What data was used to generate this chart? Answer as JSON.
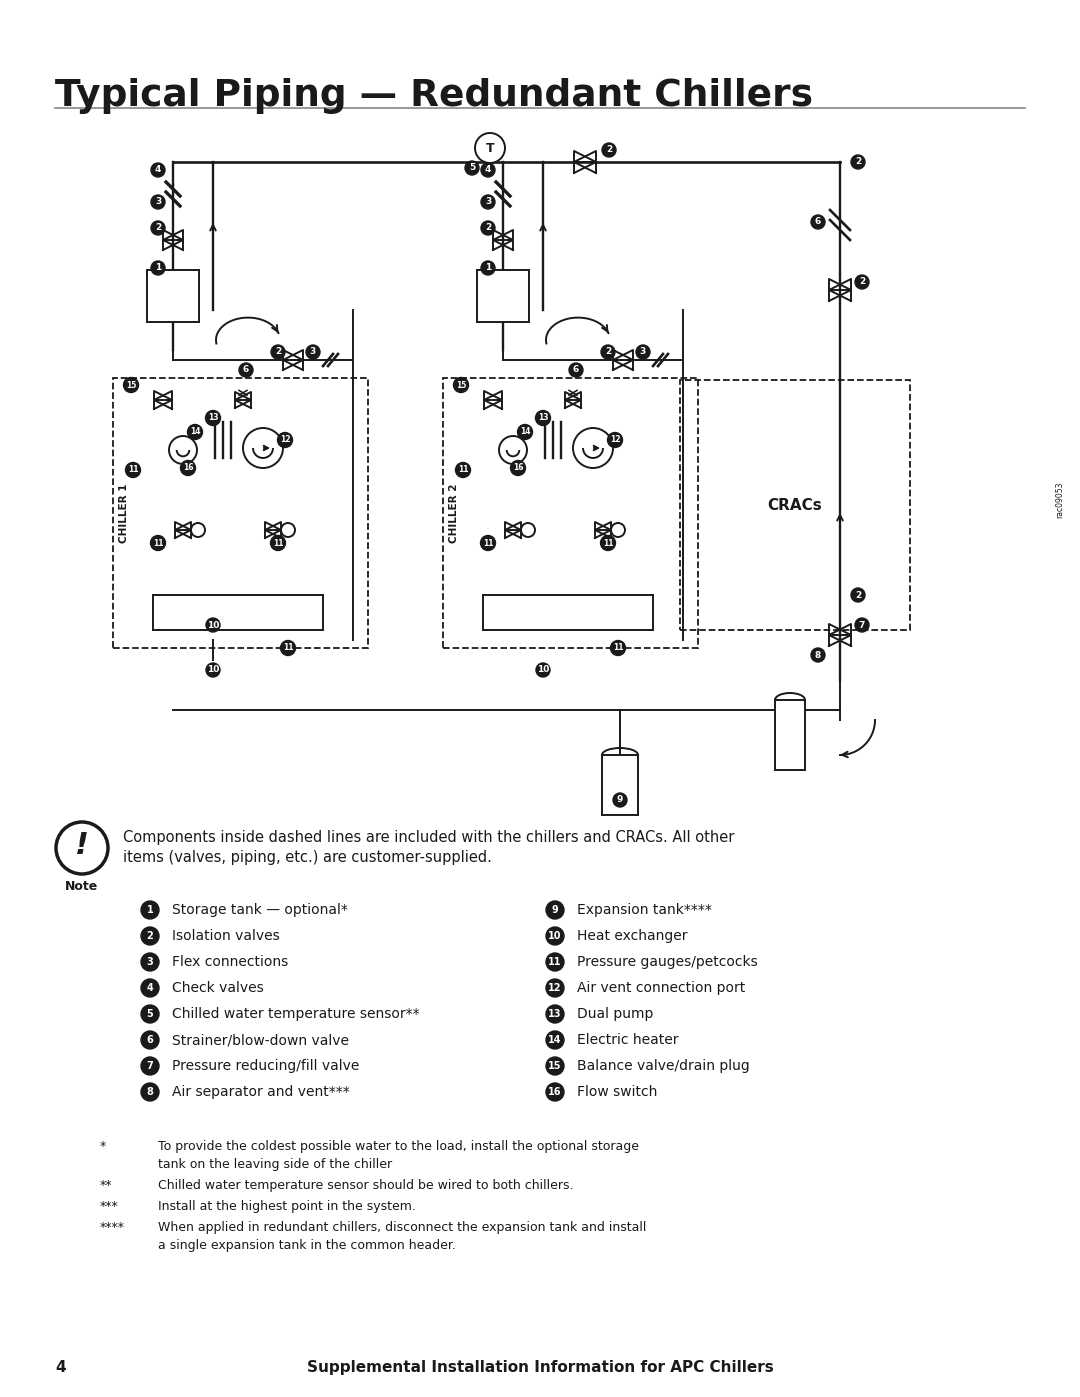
{
  "title": "Typical Piping — Redundant Chillers",
  "page_number": "4",
  "footer_text": "Supplemental Installation Information for APC Chillers",
  "note_text_1": "Components inside dashed lines are included with the chillers and CRACs. All other",
  "note_text_2": "items (valves, piping, etc.) are customer-supplied.",
  "legend_left": [
    [
      "1",
      "Storage tank — optional*"
    ],
    [
      "2",
      "Isolation valves"
    ],
    [
      "3",
      "Flex connections"
    ],
    [
      "4",
      "Check valves"
    ],
    [
      "5",
      "Chilled water temperature sensor**"
    ],
    [
      "6",
      "Strainer/blow-down valve"
    ],
    [
      "7",
      "Pressure reducing/fill valve"
    ],
    [
      "8",
      "Air separator and vent***"
    ]
  ],
  "legend_right": [
    [
      "9",
      "Expansion tank****"
    ],
    [
      "10",
      "Heat exchanger"
    ],
    [
      "11",
      "Pressure gauges/petcocks"
    ],
    [
      "12",
      "Air vent connection port"
    ],
    [
      "13",
      "Dual pump"
    ],
    [
      "14",
      "Electric heater"
    ],
    [
      "15",
      "Balance valve/drain plug"
    ],
    [
      "16",
      "Flow switch"
    ]
  ],
  "footnotes": [
    [
      "*",
      "To provide the coldest possible water to the load, install the optional storage",
      "tank on the leaving side of the chiller"
    ],
    [
      "**",
      "Chilled water temperature sensor should be wired to both chillers.",
      ""
    ],
    [
      "***",
      "Install at the highest point in the system.",
      ""
    ],
    [
      "****",
      "When applied in redundant chillers, disconnect the expansion tank and install",
      "a single expansion tank in the common header."
    ]
  ],
  "bg_color": "#ffffff",
  "text_color": "#1a1a1a",
  "diagram_color": "#1a1a1a",
  "rule_color": "#888888"
}
